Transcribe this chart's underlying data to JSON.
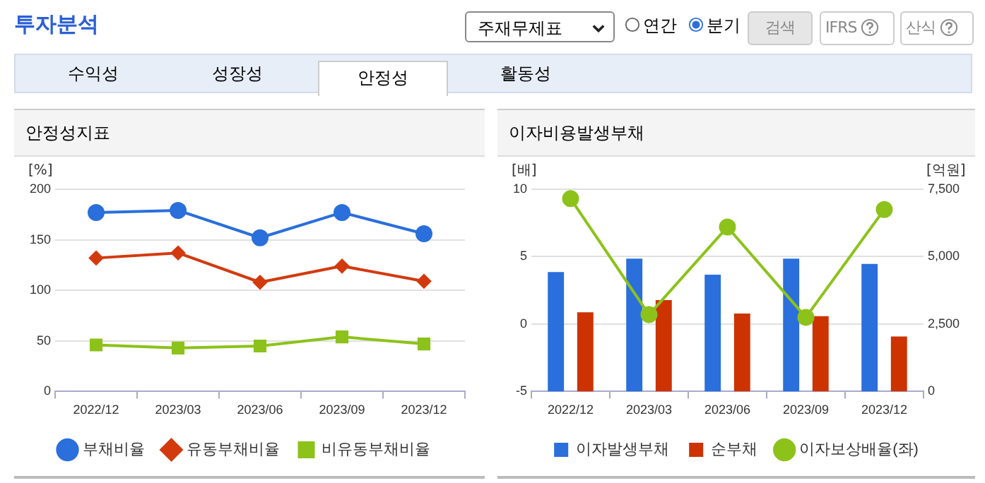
{
  "chart_data": [
    {
      "type": "other",
      "title": "투자분석",
      "annotations": [
        "주재무제표",
        "연간",
        "분기",
        "검색",
        "IFRS",
        "산식",
        "수익성",
        "성장성",
        "안정성",
        "활동성"
      ]
    },
    {
      "type": "line",
      "title": "안정성지표",
      "ylabel": "[%]",
      "categories": [
        "2022/12",
        "2023/03",
        "2023/06",
        "2023/09",
        "2023/12"
      ],
      "ylim": [
        0,
        200
      ],
      "yticks": [
        0,
        50,
        100,
        150,
        200
      ],
      "grid": "y",
      "legend": "bottom",
      "series": [
        {
          "name": "부채비율",
          "color": "#2a6fdb",
          "marker": "circle",
          "values": [
            177,
            179,
            152,
            177,
            156
          ]
        },
        {
          "name": "유동부채비율",
          "color": "#d23a0e",
          "marker": "diamond",
          "values": [
            132,
            137,
            108,
            124,
            109
          ]
        },
        {
          "name": "비유동부채비율",
          "color": "#8cc21a",
          "marker": "square",
          "values": [
            46,
            43,
            45,
            54,
            47
          ]
        }
      ]
    },
    {
      "type": "bar",
      "title": "이자비용발생부채",
      "ylabel": "[배]",
      "y2label": "[억원]",
      "categories": [
        "2022/12",
        "2023/03",
        "2023/06",
        "2023/09",
        "2023/12"
      ],
      "ylim": [
        -5,
        10
      ],
      "yticks": [
        -5,
        0,
        5,
        10
      ],
      "y2lim": [
        0,
        7500
      ],
      "y2ticks": [
        0,
        {
          "value": 2500,
          "label": "2,500"
        },
        {
          "value": 5000,
          "label": "5,000"
        },
        {
          "value": 7500,
          "label": "7,500"
        }
      ],
      "grid": "y",
      "legend": "bottom",
      "series": [
        {
          "name": "이자발생부채",
          "color": "#2a6fdb",
          "axis": "y2",
          "values": [
            4430,
            4930,
            4330,
            4930,
            4730
          ]
        },
        {
          "name": "순부채",
          "color": "#cc3300",
          "axis": "y2",
          "values": [
            2940,
            3390,
            2890,
            2790,
            2040
          ]
        },
        {
          "name": "이자보상배율(좌)",
          "type": "line",
          "color": "#8cc21a",
          "marker": "circle",
          "values": [
            9.3,
            0.7,
            7.2,
            0.5,
            8.5
          ]
        }
      ]
    }
  ]
}
